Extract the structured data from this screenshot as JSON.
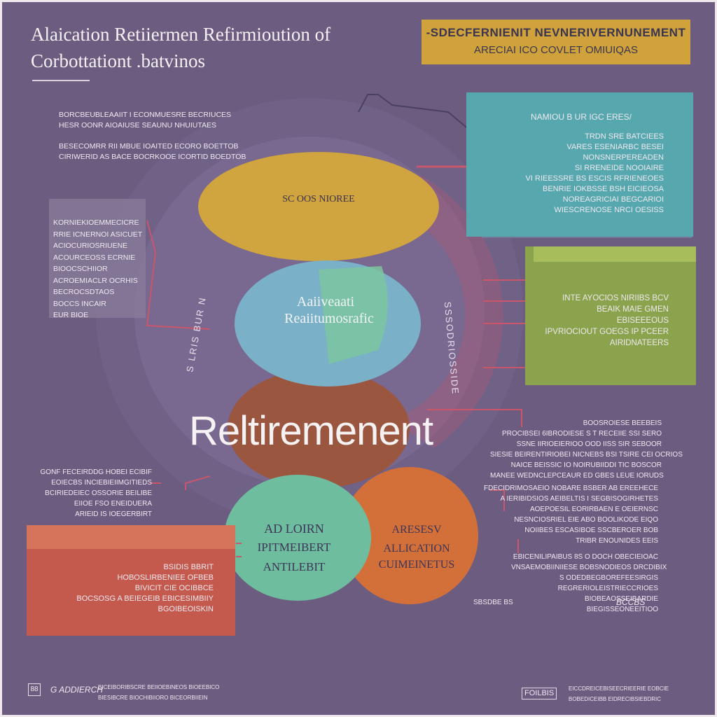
{
  "header": {
    "title_line1": "Alaication Retiiermen Refirmioution of",
    "title_line2": "Corbottationt .batvinos"
  },
  "banner": {
    "line1": "-SDECFERNIENIT NEVNERIVERNUNEMENT",
    "line2": "ARECIAI ICO COVLET OMIUIQAS"
  },
  "left_top_text": [
    "Borcbeubleaaiit i econmuesre becriuces",
    "hesr oonr aioaiuse seaunu nhuiutaes",
    "",
    "besecomrr rii mbue ioaited ECORO BOETTOB",
    "CIRIWERID AS BACE BOCRKOOE ICORTID BOEDTOB"
  ],
  "left_box_text": [
    "KORNIEKIOEMMECICRE",
    "RRIE ICNERNOI ASICUET",
    "ACIOCURIOSRIUENE",
    "ACOURCEOSS ECRNIE",
    "BIOOCSCHIIOR",
    "ACROEMIACLR OCRHIS",
    "BECROCSDTAOS",
    "BOCCS INCAIR",
    "EUR BIOE"
  ],
  "teal_box": {
    "title": "NAMIOU B UR IGC ERES/",
    "lines": [
      "TRDN SRE BATCIEES",
      "VARES ESENIARBC BESEI",
      "NONSNERPEREADEN",
      "SI RRENEIDE NOOIAIRE",
      "VI RIEESSRE BS ESCIS RFRIENEOES",
      "BENRIE IOKBSSE BSH EICIEOSA",
      "NOREAGRICIAI BEGCARIOI",
      "WIESCRENOSE NRCI OESISS"
    ]
  },
  "green_box": {
    "lines": [
      "INTE AYOCIOS NIRIIBS BCV",
      "BEAIK MAIE GMEN",
      "EBISEEEOUS",
      "IPVRIOCIOUT GOEGS IP PCEER",
      "AIRIDNATEERS"
    ]
  },
  "circles": {
    "top": "SC OOS NIOREE",
    "middle_line1": "Aaiiveaati",
    "middle_line2": "Reaiitumosrafic",
    "bottom_left_line1": "AD LOIRN",
    "bottom_left_line2": "IPITMEIBERT",
    "bottom_left_line3": "ANTILEBIT",
    "bottom_right_line1": "ARESESV",
    "bottom_right_line2": "ALLICATION",
    "bottom_right_line3": "CUIMEINETUS",
    "ring_left": "S LRIS BUR N",
    "ring_right": "SSSODRIOSSIDE"
  },
  "center_word": "Reltiremenent",
  "right_mid_text": [
    "BOOSROIESE BEEBEIS",
    "PROCIBSEI 6IBRODIESE S T RECEIIE SSI SERO",
    "SSNE IIRIOEIERIOO OOD IISS SIR SEBOOR",
    "SIESIE BEIRENTIRIOBEI NICNEBS BSI TSIRE CEI OCRIOS",
    "NAICE BEISSIC IO NOIRUBIIDDI TIC BOSCOR",
    "MANEE WEDNCLEPCEAUR ED GBES LEUE IORUDS"
  ],
  "right_low_text": [
    "FDECIDRIMOSAEIO NOBARE BSBER AB EREEHECE",
    "A IERIBIDSIOS AEIBELTIS I SEGBISOGIRHETES",
    "AOEPOESIL EORIRBAEN E OEIERNSC",
    "NESNCIOSRIEL EIE ABO BOOLIKODE EIQO",
    "NOIIBES ESCASIBOE SSCBEROER BOB",
    "TRIBR ENOUNIDES EEIS"
  ],
  "right_bottom_text": [
    "EBICENILIPAIBUS 8S O DOCH OBECIEIOAC",
    "VNSAEMOBIINIIESE BOBSNODIEOS DRCDIBIX",
    "S ODEDBEGBOREFEESIRGIS",
    "REGRERIOLEISTRIECCRIOES",
    "BIOBEAOSSEIBARDIE",
    "BIEGISSEONEEITIOO"
  ],
  "right_signature": "SBSDBE BS",
  "right_signature2": "BCCBS",
  "left_lower_text": [
    "GONF FECEIRDDG HOBEI ECIBIF",
    "EOIECBS INCIEBIEIIMGITIEDS",
    "BCIRIEDEIEC OSSORIE BEILIBE",
    "EIIOE FSO ENEIDUERA",
    "ARIEID IS IOEGERBIRT"
  ],
  "red_box": {
    "lines": [
      "BSIDIS BBRIT",
      "HOBOSLIRBENIEE OFBEB",
      "BIVICIT CIE OCIBBCE",
      "BOCSOSG A BEIEGEIB EBICESIMBIIY",
      "BGOIBEOISKIN"
    ]
  },
  "footer": {
    "icon": "88",
    "label": "G ADDIERCH",
    "small_line1": "BICEIBORIBSCRE BEIIOEBINEOS BIOEEBICO",
    "small_line2": "BIESIBCRE BIOCHIBIIORO BICEORBIIEIN",
    "right_tag": "FOILBIS",
    "right_small1": "EICCDREICEBISEECRIEERIE EOBCIE",
    "right_small2": "BOBEDICEIBB EIDRECIBSIEBDRIC"
  }
}
